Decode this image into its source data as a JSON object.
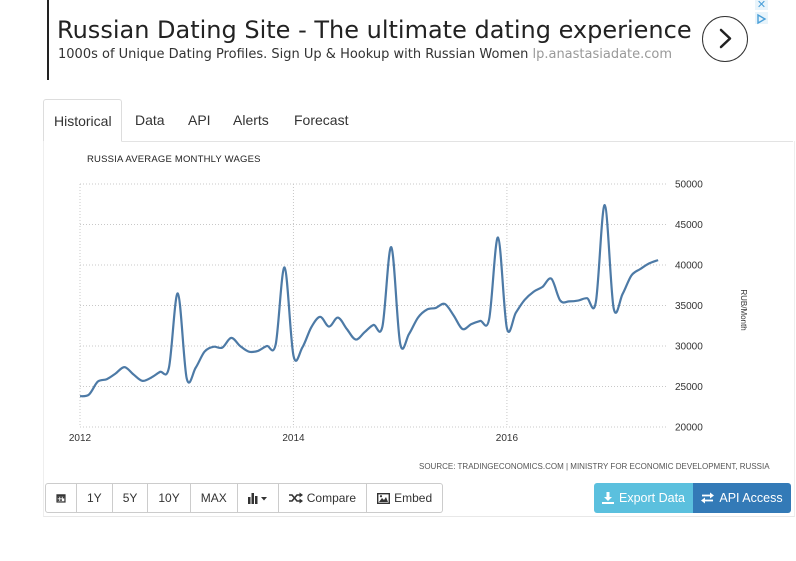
{
  "ad": {
    "title": "Russian Dating Site - The ultimate dating experience",
    "subtitle": "1000s of Unique Dating Profiles. Sign Up & Hookup with Russian Women",
    "url": "lp.anastasiadate.com",
    "close_glyph": "✕"
  },
  "tabs": [
    {
      "label": "Historical",
      "active": true
    },
    {
      "label": "Data"
    },
    {
      "label": "API"
    },
    {
      "label": "Alerts"
    },
    {
      "label": "Forecast"
    }
  ],
  "source": "SOURCE: TRADINGECONOMICS.COM | MINISTRY FOR ECONOMIC DEVELOPMENT, RUSSIA",
  "toolbar": {
    "calendar_icon": "calendar-icon",
    "ranges": [
      "1Y",
      "5Y",
      "10Y",
      "MAX"
    ],
    "chart_type_icon": "bar-chart-icon",
    "compare_label": "Compare",
    "embed_label": "Embed",
    "export_label": "Export Data",
    "api_label": "API Access"
  },
  "chart_data": {
    "type": "line",
    "title": "RUSSIA AVERAGE MONTHLY WAGES",
    "ylabel": "RUB/Month",
    "xlabel": "",
    "y_ticks": [
      20000,
      25000,
      30000,
      35000,
      40000,
      45000,
      50000
    ],
    "ylim": [
      20000,
      50000
    ],
    "x_ticks": [
      "2012",
      "2014",
      "2016"
    ],
    "xlim": [
      "2012-01",
      "2017-07"
    ],
    "y_axis_position": "right",
    "grid": "dotted",
    "line_color": "#4d7aa6",
    "series": [
      {
        "x": [
          "2012-01",
          "2012-02",
          "2012-03",
          "2012-04",
          "2012-05",
          "2012-06",
          "2012-07",
          "2012-08",
          "2012-09",
          "2012-10",
          "2012-11",
          "2012-12",
          "2013-01",
          "2013-02",
          "2013-03",
          "2013-04",
          "2013-05",
          "2013-06",
          "2013-07",
          "2013-08",
          "2013-09",
          "2013-10",
          "2013-11",
          "2013-12",
          "2014-01",
          "2014-02",
          "2014-03",
          "2014-04",
          "2014-05",
          "2014-06",
          "2014-07",
          "2014-08",
          "2014-09",
          "2014-10",
          "2014-11",
          "2014-12",
          "2015-01",
          "2015-02",
          "2015-03",
          "2015-04",
          "2015-05",
          "2015-06",
          "2015-07",
          "2015-08",
          "2015-09",
          "2015-10",
          "2015-11",
          "2015-12",
          "2016-01",
          "2016-02",
          "2016-03",
          "2016-04",
          "2016-05",
          "2016-06",
          "2016-07",
          "2016-08",
          "2016-09",
          "2016-10",
          "2016-11",
          "2016-12",
          "2017-01",
          "2017-02",
          "2017-03",
          "2017-04",
          "2017-05",
          "2017-06"
        ],
        "values": [
          23800,
          24000,
          25600,
          25900,
          26600,
          27400,
          26500,
          25700,
          26100,
          26800,
          27300,
          36500,
          26000,
          27300,
          29300,
          29900,
          29800,
          31000,
          30000,
          29300,
          29400,
          30000,
          30200,
          39700,
          28800,
          29800,
          32300,
          33600,
          32400,
          33500,
          32100,
          30800,
          31700,
          32600,
          32400,
          42200,
          30300,
          31500,
          33500,
          34500,
          34700,
          35200,
          33800,
          32100,
          32700,
          33100,
          33300,
          43400,
          32200,
          34100,
          35700,
          36700,
          37300,
          38300,
          35600,
          35500,
          35600,
          35900,
          35400,
          47400,
          34700,
          36400,
          38700,
          39500,
          40200,
          40600
        ]
      }
    ]
  }
}
